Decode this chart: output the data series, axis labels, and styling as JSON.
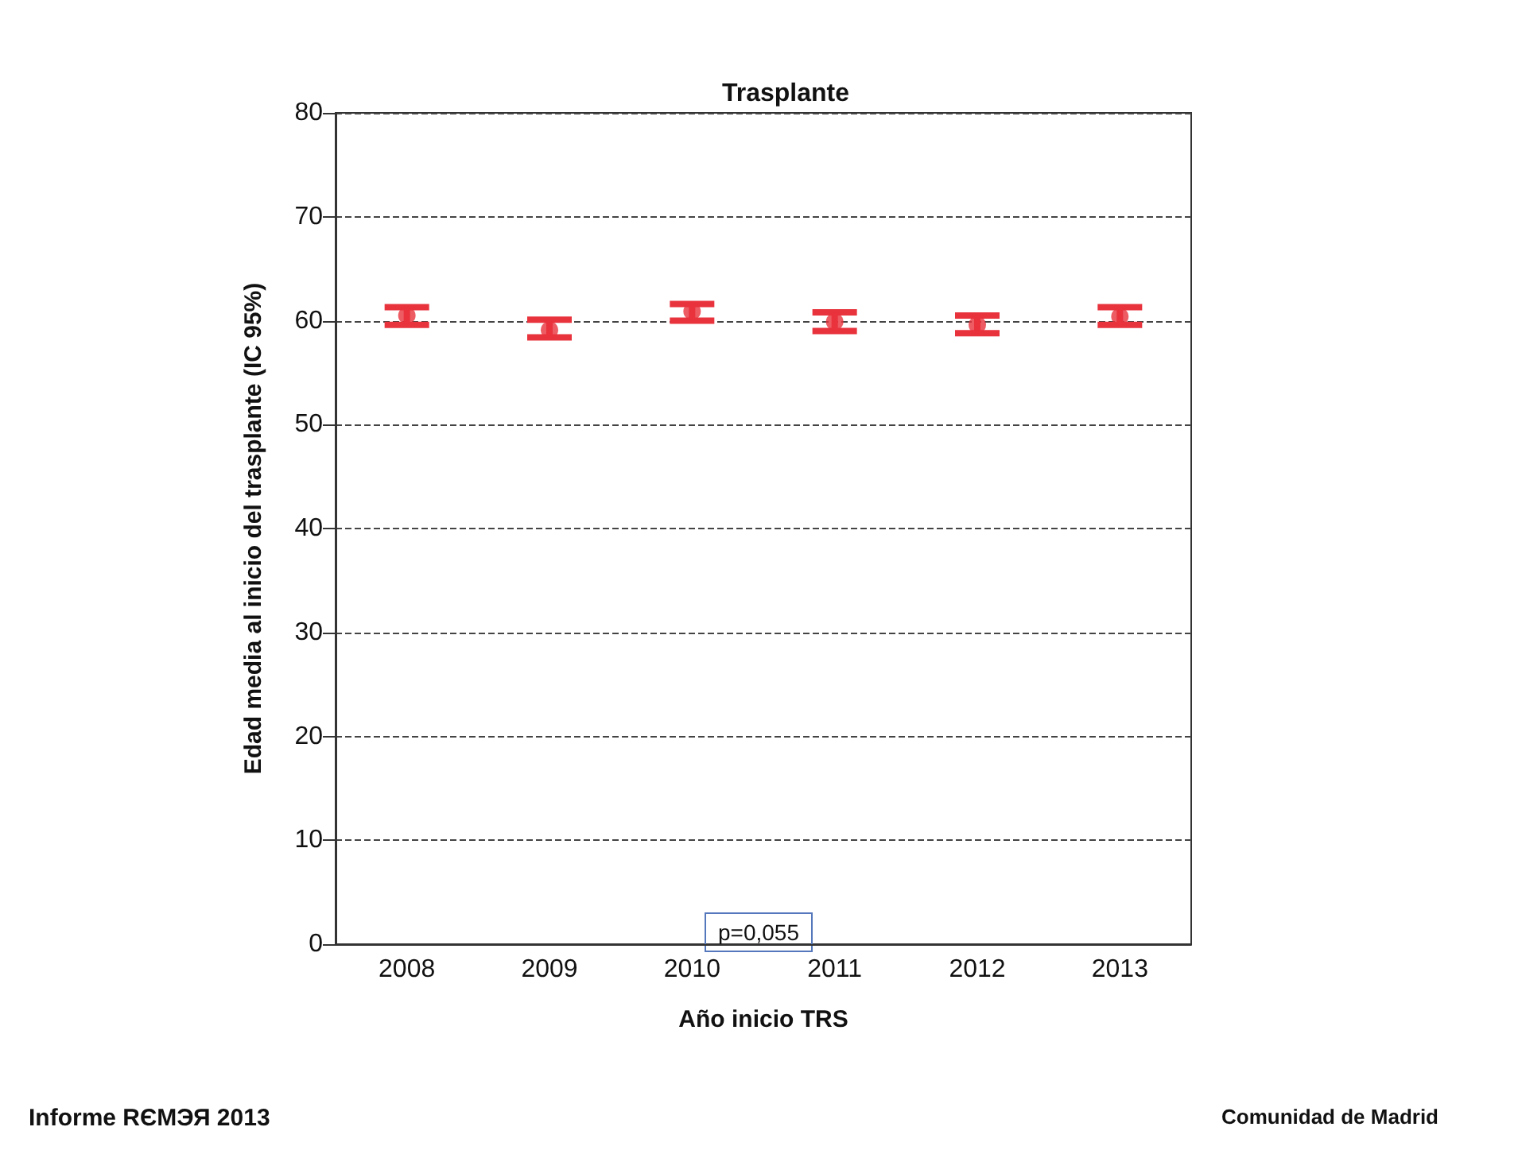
{
  "chart_data": {
    "type": "scatter",
    "title": "Trasplante",
    "xlabel": "Año inicio TRS",
    "ylabel": "Edad media al inicio del trasplante (IC 95%)",
    "categories": [
      "2008",
      "2009",
      "2010",
      "2011",
      "2012",
      "2013"
    ],
    "series": [
      {
        "color": "#e8323c",
        "values": [
          60.5,
          59.1,
          60.9,
          59.9,
          59.6,
          60.4
        ],
        "errors": [
          [
            59.6,
            61.3
          ],
          [
            58.4,
            60.1
          ],
          [
            60.0,
            61.6
          ],
          [
            59.0,
            60.8
          ],
          [
            58.8,
            60.5
          ],
          [
            59.6,
            61.3
          ]
        ]
      }
    ],
    "ylim": [
      0,
      80
    ],
    "yticks": [
      0,
      10,
      20,
      30,
      40,
      50,
      60,
      70,
      80
    ],
    "grid": "y",
    "line_style": "dashed",
    "marker": "circle",
    "annotations": [
      "p=0,055",
      "Informe RЄМЭЯ 2013",
      "Comunidad de Madrid"
    ]
  }
}
